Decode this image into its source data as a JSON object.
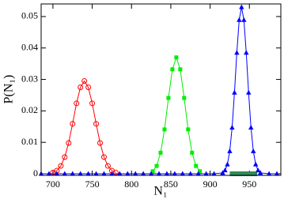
{
  "chart_data": {
    "type": "line",
    "xlabel": "N₁",
    "ylabel": "P(N₁)",
    "xlim": [
      685,
      990
    ],
    "ylim": [
      -0.0005,
      0.054
    ],
    "xticks": [
      700,
      750,
      800,
      850,
      900,
      950
    ],
    "yticks": [
      0,
      0.01,
      0.02,
      0.03,
      0.04,
      0.05
    ],
    "series": [
      {
        "color": "#ff0000",
        "marker": "circle",
        "x": [
          700,
          705,
          710,
          715,
          720,
          725,
          730,
          735,
          740,
          745,
          750,
          755,
          760,
          765,
          770,
          775,
          780
        ],
        "values": [
          0.0004,
          0.001,
          0.0025,
          0.0053,
          0.0098,
          0.0159,
          0.0224,
          0.0275,
          0.0295,
          0.0275,
          0.0224,
          0.0159,
          0.0098,
          0.0053,
          0.0025,
          0.001,
          0.0004
        ]
      },
      {
        "color": "#00ee00",
        "marker": "square",
        "x": [
          827,
          832,
          837,
          842,
          847,
          852,
          857,
          862,
          867,
          872,
          877,
          882,
          887
        ],
        "values": [
          0.0008,
          0.0025,
          0.0067,
          0.0141,
          0.0241,
          0.0332,
          0.037,
          0.0332,
          0.0241,
          0.0141,
          0.0067,
          0.0025,
          0.0008
        ]
      },
      {
        "color": "#0000ff",
        "marker": "triangle",
        "x": [
          685,
          695,
          705,
          715,
          725,
          735,
          745,
          755,
          765,
          775,
          785,
          795,
          805,
          815,
          825,
          835,
          845,
          855,
          865,
          875,
          885,
          895,
          905,
          916,
          919,
          922,
          925,
          928,
          931,
          934,
          937,
          940,
          943,
          946,
          949,
          952,
          955,
          958,
          961,
          964,
          975,
          985
        ],
        "values": [
          0,
          0,
          0,
          0,
          0,
          0,
          0,
          0,
          0,
          0,
          0,
          0,
          0,
          0,
          0,
          0,
          0,
          0,
          0,
          0,
          0,
          0,
          0,
          0.0003,
          0.0011,
          0.003,
          0.0072,
          0.0147,
          0.0258,
          0.0385,
          0.0489,
          0.053,
          0.0489,
          0.0385,
          0.0258,
          0.0147,
          0.0072,
          0.003,
          0.0011,
          0.0003,
          0,
          0
        ]
      }
    ],
    "range_bar": {
      "x": [
        925,
        960
      ],
      "color": "#2e8b57"
    }
  }
}
